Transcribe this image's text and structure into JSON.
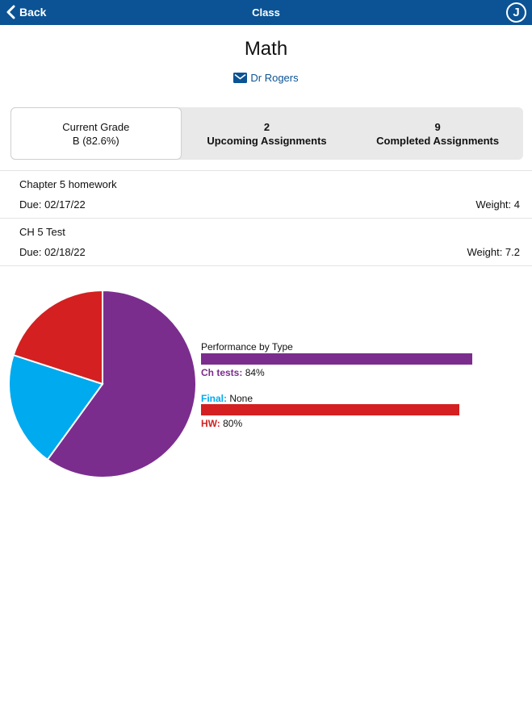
{
  "navbar": {
    "back_label": "Back",
    "title": "Class",
    "avatar_letter": "J"
  },
  "class": {
    "name": "Math",
    "teacher": "Dr Rogers"
  },
  "tabs": [
    {
      "line1": "Current Grade",
      "line2": "B (82.6%)"
    },
    {
      "line1": "2",
      "line2": "Upcoming Assignments"
    },
    {
      "line1": "9",
      "line2": "Completed Assignments"
    }
  ],
  "assignments": [
    {
      "name": "Chapter 5 homework",
      "due": "Due: 02/17/22",
      "weight": "Weight: 4"
    },
    {
      "name": "CH 5 Test",
      "due": "Due: 02/18/22",
      "weight": "Weight: 7.2"
    }
  ],
  "colors": {
    "navbar": "#0b5394",
    "ch_tests": "#7b2d8e",
    "final": "#00aaee",
    "hw": "#d42020"
  },
  "chart_data": {
    "type": "pie",
    "title": "Performance by Type",
    "slices": [
      {
        "name": "Ch tests",
        "share": 0.6,
        "color": "#7b2d8e"
      },
      {
        "name": "Final",
        "share": 0.2,
        "color": "#00aaee"
      },
      {
        "name": "HW",
        "share": 0.2,
        "color": "#d42020"
      }
    ],
    "performance": [
      {
        "key": "Ch tests:",
        "value": "84%",
        "percent": 84,
        "color": "#7b2d8e"
      },
      {
        "key": "Final:",
        "value": "None",
        "percent": null,
        "color": "#00aaee"
      },
      {
        "key": "HW:",
        "value": "80%",
        "percent": 80,
        "color": "#d42020"
      }
    ]
  }
}
